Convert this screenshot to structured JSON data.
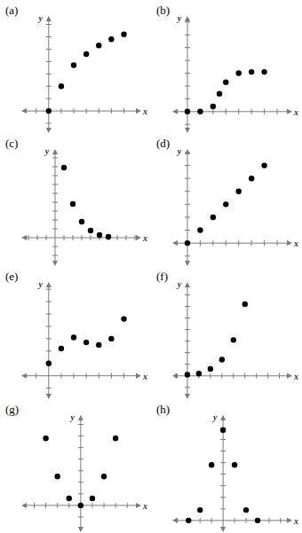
{
  "chart_data": [
    {
      "type": "scatter",
      "title": "(a)",
      "x_label": "x",
      "y_label": "y",
      "x": [
        0,
        1,
        2,
        3,
        4,
        5,
        6
      ],
      "values": [
        0,
        2.0,
        3.7,
        4.6,
        5.3,
        5.8,
        6.2
      ],
      "xlim": [
        -1.9,
        7.1
      ],
      "ylim": [
        -1.5,
        7.4
      ],
      "xticks": [
        -1,
        1,
        2,
        3,
        4,
        5,
        6,
        7
      ],
      "yticks": [
        -1,
        1,
        2,
        3,
        4,
        5,
        6,
        7
      ],
      "tick_labels": false,
      "color": "#000000",
      "marker": "circle"
    },
    {
      "type": "scatter",
      "title": "(b)",
      "x_label": "x",
      "y_label": "y",
      "x": [
        0,
        1,
        2,
        2.5,
        3,
        4,
        5,
        6
      ],
      "values": [
        0,
        0,
        0.4,
        1.4,
        2.3,
        3.0,
        3.1,
        3.1
      ],
      "xlim": [
        -0.9,
        7.9
      ],
      "ylim": [
        -1.4,
        7.2
      ],
      "xticks": [
        1,
        2,
        3,
        4,
        5,
        6,
        7
      ],
      "yticks": [
        -1,
        1,
        2,
        3,
        4,
        5,
        6,
        7
      ],
      "tick_labels": false,
      "color": "#000000",
      "marker": "circle"
    },
    {
      "type": "scatter",
      "title": "(c)",
      "x_label": "x",
      "y_label": "y",
      "x": [
        1,
        2,
        3,
        4,
        5,
        6
      ],
      "values": [
        7.9,
        3.8,
        1.8,
        0.8,
        0.3,
        0.1
      ],
      "xlim": [
        -3.4,
        9.3
      ],
      "ylim": [
        -2.8,
        9.6
      ],
      "xticks": [
        -3,
        -2,
        -1,
        1,
        2,
        3,
        4,
        5,
        6,
        7,
        8,
        9
      ],
      "yticks": [
        -2,
        -1,
        1,
        2,
        3,
        4,
        5,
        6,
        7,
        8,
        9
      ],
      "tick_labels": false,
      "color": "#000000",
      "marker": "circle"
    },
    {
      "type": "scatter",
      "title": "(d)",
      "x_label": "x",
      "y_label": "y",
      "x": [
        0,
        1,
        2,
        3,
        4,
        5,
        6
      ],
      "values": [
        0,
        1,
        2,
        3,
        4,
        5,
        6
      ],
      "xlim": [
        -0.9,
        7.9
      ],
      "ylim": [
        -1.5,
        7.0
      ],
      "xticks": [
        1,
        2,
        3,
        4,
        5,
        6,
        7
      ],
      "yticks": [
        -1,
        1,
        2,
        3,
        4,
        5,
        6,
        7
      ],
      "tick_labels": false,
      "color": "#000000",
      "marker": "circle"
    },
    {
      "type": "scatter",
      "title": "(e)",
      "x_label": "x",
      "y_label": "y",
      "x": [
        0,
        1,
        2,
        3,
        4,
        5,
        6
      ],
      "values": [
        1.0,
        2.2,
        3.1,
        2.7,
        2.5,
        3.0,
        4.6
      ],
      "xlim": [
        -1.9,
        7.1
      ],
      "ylim": [
        -1.6,
        7.3
      ],
      "xticks": [
        -1,
        1,
        2,
        3,
        4,
        5,
        6,
        7
      ],
      "yticks": [
        -1,
        1,
        2,
        3,
        4,
        5,
        6,
        7
      ],
      "tick_labels": false,
      "color": "#000000",
      "marker": "circle"
    },
    {
      "type": "scatter",
      "title": "(f)",
      "x_label": "x",
      "y_label": "y",
      "x": [
        0,
        1,
        2,
        3,
        4,
        5
      ],
      "values": [
        0.1,
        0.2,
        0.6,
        1.4,
        3.1,
        6.2
      ],
      "xlim": [
        -1.0,
        8.8
      ],
      "ylim": [
        -1.7,
        7.8
      ],
      "xticks": [
        -1,
        1,
        2,
        3,
        4,
        5,
        6,
        7,
        8
      ],
      "yticks": [
        -1,
        1,
        2,
        3,
        4,
        5,
        6,
        7
      ],
      "tick_labels": false,
      "color": "#000000",
      "marker": "circle"
    },
    {
      "type": "scatter",
      "title": "(g)",
      "x_label": "x",
      "y_label": "y",
      "x": [
        -3,
        -2,
        -1,
        0,
        1,
        2,
        3
      ],
      "values": [
        5.8,
        2.5,
        0.6,
        0,
        0.6,
        2.5,
        5.8
      ],
      "xlim": [
        -4.8,
        4.9
      ],
      "ylim": [
        -2.0,
        7.5
      ],
      "xticks": [
        -4,
        -3,
        -2,
        -1,
        1,
        2,
        3,
        4
      ],
      "yticks": [
        -1,
        1,
        2,
        3,
        4,
        5,
        6,
        7
      ],
      "tick_labels": false,
      "color": "#000000",
      "marker": "circle"
    },
    {
      "type": "scatter",
      "title": "(h)",
      "x_label": "x",
      "y_label": "y",
      "x": [
        -3,
        -2,
        -1,
        0,
        1,
        2,
        3
      ],
      "values": [
        0,
        0.9,
        4.8,
        7.8,
        4.8,
        0.9,
        0
      ],
      "xlim": [
        -4.1,
        5.7
      ],
      "ylim": [
        -0.7,
        8.8
      ],
      "xticks": [
        -4,
        -3,
        -2,
        -1,
        1,
        2,
        3,
        4,
        5
      ],
      "yticks": [
        1,
        2,
        3,
        4,
        5,
        6,
        7,
        8
      ],
      "tick_labels": false,
      "color": "#000000",
      "marker": "circle"
    }
  ]
}
